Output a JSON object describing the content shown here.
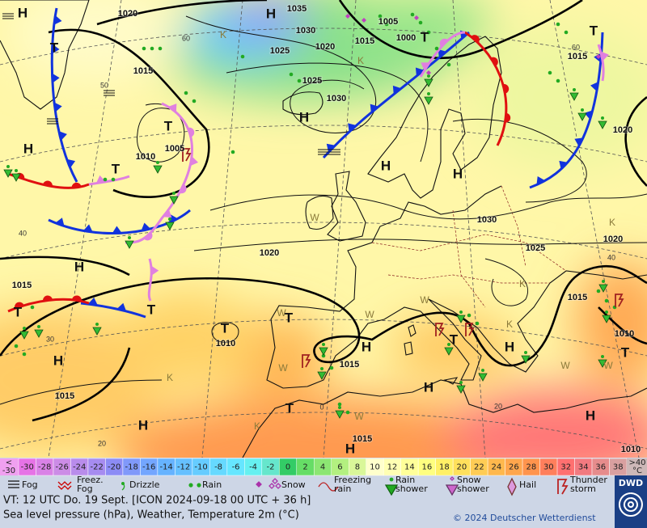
{
  "map": {
    "isobar_labels": [
      1020,
      1035,
      1030,
      1020,
      1025,
      1015,
      1005,
      1000,
      1015,
      1025,
      1030,
      1005,
      1010,
      1015,
      1020,
      1030,
      1025,
      1020,
      1020,
      1015,
      1015,
      1010,
      1010,
      1015,
      1015,
      1015,
      1010
    ],
    "pressure_centers": [
      "H",
      "T",
      "H",
      "T",
      "T",
      "H",
      "T",
      "H",
      "T",
      "H",
      "H",
      "H",
      "T",
      "T",
      "T",
      "T",
      "H",
      "H",
      "T",
      "H",
      "T",
      "H",
      "T",
      "H",
      "H",
      "H"
    ],
    "airmass_labels": [
      "K",
      "K",
      "W",
      "W",
      "W",
      "W",
      "W",
      "W",
      "K",
      "K",
      "K",
      "K",
      "K",
      "W",
      "W"
    ],
    "grid_labels": [
      "60",
      "50",
      "40",
      "30",
      "20",
      "0",
      "20",
      "40",
      "60"
    ]
  },
  "color_scale": {
    "min_label": [
      "<",
      "-30"
    ],
    "values": [
      -30,
      -28,
      -26,
      -24,
      -22,
      -20,
      -18,
      -16,
      -14,
      -12,
      -10,
      -8,
      -6,
      -4,
      -2,
      0,
      2,
      4,
      6,
      8,
      10,
      12,
      14,
      16,
      18,
      20,
      22,
      24,
      26,
      28,
      30,
      32,
      34,
      36,
      38
    ],
    "colors": [
      "#e673e6",
      "#d982e6",
      "#cc8ce6",
      "#b98ceb",
      "#a68cf0",
      "#8c8cf5",
      "#8099fa",
      "#73a6ff",
      "#66b3ff",
      "#66c0ff",
      "#66ccff",
      "#66d9ff",
      "#66e6ff",
      "#66f0f0",
      "#66e6cc",
      "#33cc66",
      "#66dd66",
      "#8ce673",
      "#b3f080",
      "#d9f799",
      "#ffffcc",
      "#ffffb3",
      "#ffff99",
      "#ffff80",
      "#fff066",
      "#ffe05c",
      "#ffcc55",
      "#ffb84d",
      "#ffa64d",
      "#ff944d",
      "#ff7f5c",
      "#ff7070",
      "#f27a80",
      "#e68c8c",
      "#d9a0a0"
    ],
    "max_label": [
      ">40",
      "°C"
    ]
  },
  "legend": [
    {
      "label": [
        "Fog"
      ]
    },
    {
      "label": [
        "Freez.",
        "Fog"
      ]
    },
    {
      "label": [
        "Drizzle"
      ]
    },
    {
      "label": [
        "Rain"
      ]
    },
    {
      "label": [
        "Snow"
      ]
    },
    {
      "label": [
        "Freezing",
        "rain"
      ]
    },
    {
      "label": [
        "Rain",
        "shower"
      ]
    },
    {
      "label": [
        "Snow",
        "shower"
      ]
    },
    {
      "label": [
        "Hail"
      ]
    },
    {
      "label": [
        "Thunder",
        "storm"
      ]
    }
  ],
  "footer": {
    "valid_time": "VT: 12 UTC Do.  19 Sept. [ICON 2024-09-18  00 UTC + 36 h]",
    "description": "Sea level pressure (hPa), Weather, Temperature 2m (°C)",
    "copyright": "© 2024 Deutscher Wetterdienst",
    "logo": "DWD"
  }
}
